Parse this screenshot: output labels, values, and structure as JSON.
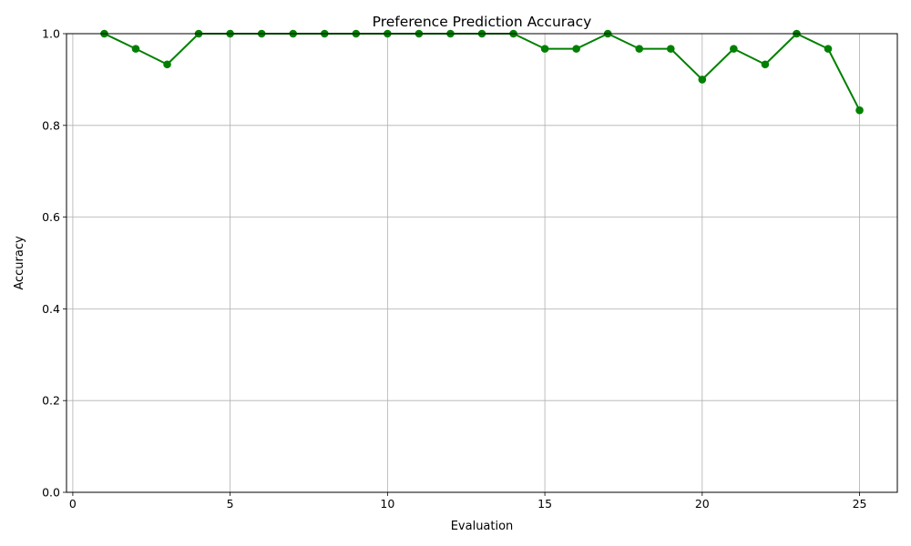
{
  "chart_data": {
    "type": "line",
    "title": "Preference Prediction Accuracy",
    "xlabel": "Evaluation",
    "ylabel": "Accuracy",
    "xlim": [
      -0.2,
      26.2
    ],
    "ylim": [
      0.0,
      1.0
    ],
    "x_ticks": [
      0,
      5,
      10,
      15,
      20,
      25
    ],
    "x_tick_labels": [
      "0",
      "5",
      "10",
      "15",
      "20",
      "25"
    ],
    "y_ticks": [
      0.0,
      0.2,
      0.4,
      0.6,
      0.8,
      1.0
    ],
    "y_tick_labels": [
      "0.0",
      "0.2",
      "0.4",
      "0.6",
      "0.8",
      "1.0"
    ],
    "grid": true,
    "legend": false,
    "series": [
      {
        "color": "#008000",
        "marker": "circle",
        "x": [
          1,
          2,
          3,
          4,
          5,
          6,
          7,
          8,
          9,
          10,
          11,
          12,
          13,
          14,
          15,
          16,
          17,
          18,
          19,
          20,
          21,
          22,
          23,
          24,
          25
        ],
        "y": [
          1.0,
          0.967,
          0.933,
          1.0,
          1.0,
          1.0,
          1.0,
          1.0,
          1.0,
          1.0,
          1.0,
          1.0,
          1.0,
          1.0,
          0.967,
          0.967,
          1.0,
          0.967,
          0.967,
          0.9,
          0.967,
          0.933,
          1.0,
          0.967,
          0.833
        ]
      }
    ],
    "colors": {
      "grid": "#b0b0b0",
      "axes": "#000000",
      "background": "#ffffff"
    }
  }
}
